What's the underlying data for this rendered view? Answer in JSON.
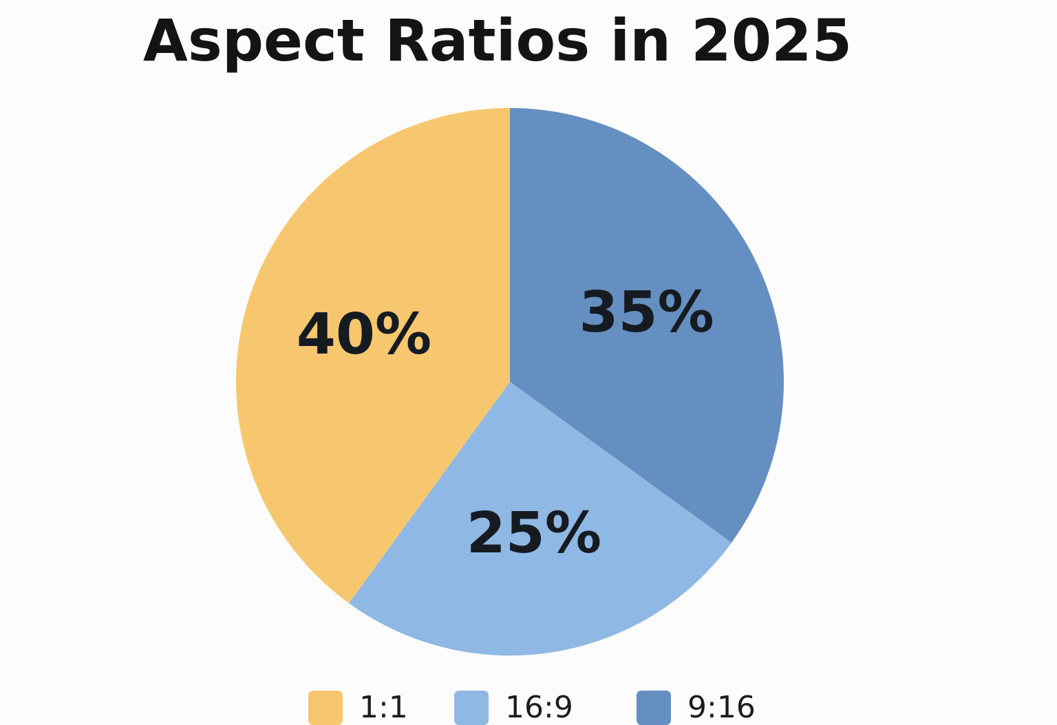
{
  "chart_data": {
    "type": "pie",
    "title": "Aspect Ratios in 2025",
    "categories": [
      "1:1",
      "16:9",
      "9:16"
    ],
    "values": [
      40,
      25,
      35
    ],
    "labels": [
      "40%",
      "25%",
      "35%"
    ],
    "colors": [
      "#f6c76f",
      "#8fb8e4",
      "#658fc0"
    ],
    "legend_position": "bottom"
  }
}
